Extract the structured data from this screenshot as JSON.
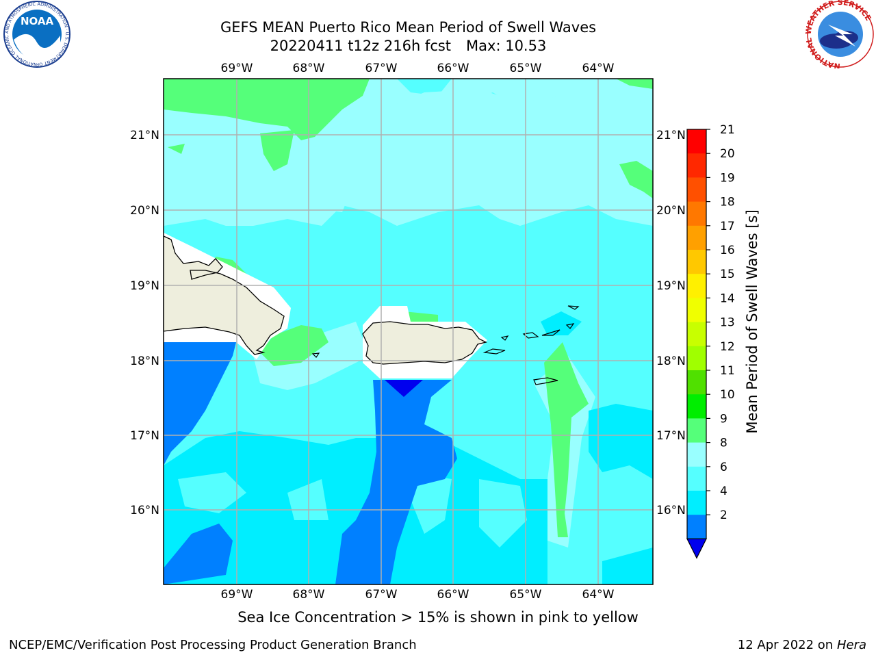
{
  "title": {
    "line1": "GEFS MEAN Puerto Rico Mean Period of Swell Waves",
    "line2_run": "20220411 t12z 216h fcst",
    "line2_max": "Max: 10.53"
  },
  "map": {
    "lon_ticks": [
      "69°W",
      "68°W",
      "67°W",
      "66°W",
      "65°W",
      "64°W"
    ],
    "lat_ticks": [
      "21°N",
      "20°N",
      "19°N",
      "18°N",
      "17°N",
      "16°N"
    ],
    "colors": {
      "land": "#eeeedd",
      "green": "#55ff7a",
      "light_cyan": "#99ffff",
      "cyan_mid": "#55ffff",
      "cyan": "#00eeff",
      "blue": "#0080ff",
      "dark_blue": "#0000ee",
      "grid": "#b0b0b0"
    }
  },
  "colorbar": {
    "title": "Mean Period of Swell Waves [s]",
    "labels": [
      "21",
      "20",
      "19",
      "18",
      "17",
      "16",
      "15",
      "14",
      "13",
      "12",
      "11",
      "10",
      "9",
      "8",
      "6",
      "4",
      "2"
    ],
    "colors": [
      "#ff0000",
      "#ff2800",
      "#ff5000",
      "#ff7800",
      "#ffa000",
      "#ffc800",
      "#fff000",
      "#f0ff00",
      "#c8ff00",
      "#a0ff00",
      "#50e000",
      "#00ee00",
      "#55ff7a",
      "#99ffff",
      "#55ffff",
      "#00eeff",
      "#0080ff"
    ],
    "extend_color": "#0000ee"
  },
  "caption": "Sea Ice Concentration > 15% is shown in pink to yellow",
  "footer": {
    "left": "NCEP/EMC/Verification Post Processing Product Generation Branch",
    "right_date": "12 Apr 2022 on ",
    "right_machine": "Hera"
  },
  "logos": {
    "noaa": "NOAA",
    "noaa_ring": "NATIONAL OCEANIC AND ATMOSPHERIC ADMINISTRATION · U.S. DEPARTMENT OF COMMERCE",
    "nws_ring": "NATIONAL WEATHER SERVICE"
  }
}
